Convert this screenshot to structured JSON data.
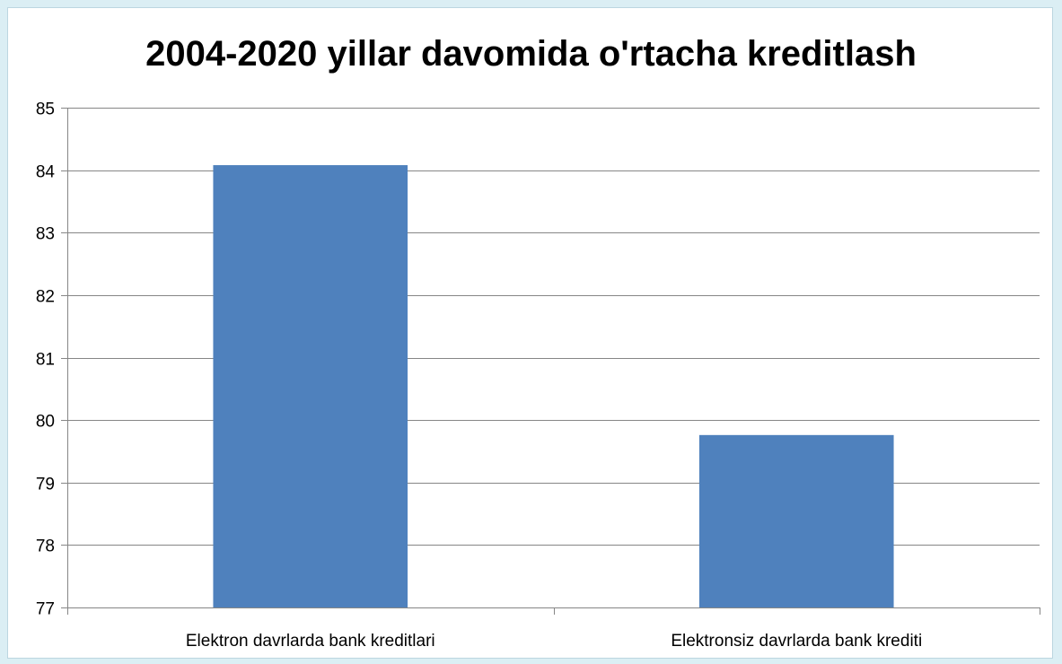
{
  "chart_data": {
    "type": "bar",
    "title": "2004-2020 yillar davomida o'rtacha kreditlash",
    "categories": [
      "Elektron davrlarda bank kreditlari",
      "Elektronsiz davrlarda bank krediti"
    ],
    "values": [
      84.08,
      79.76
    ],
    "ylim": [
      77,
      85
    ],
    "yticks": [
      77,
      78,
      79,
      80,
      81,
      82,
      83,
      84,
      85
    ],
    "grid": true,
    "legend": "none",
    "colors": {
      "bar": "#4f81bd",
      "grid": "#868686",
      "background": "#ffffff",
      "outer": "#dbeef4"
    }
  }
}
